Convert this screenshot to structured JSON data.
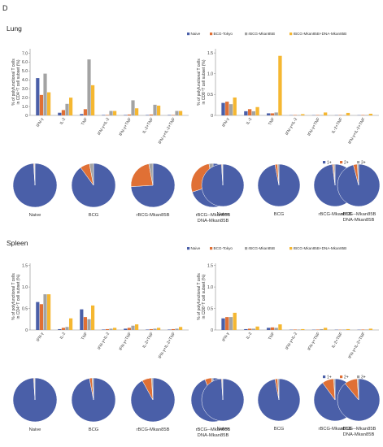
{
  "panel_letter": "D",
  "colors": {
    "naive": "#4a5fa8",
    "bcg": "#e07035",
    "rbcg": "#a3a3a3",
    "combo": "#f5b731"
  },
  "pie_colors": {
    "1+": "#4a5fa8",
    "2+": "#e07035",
    "3+": "#a3a3a3"
  },
  "sections": [
    {
      "title": "Lung",
      "legend": [
        "Naive",
        "BCG-Tokyo",
        "rBCG-Mkan85B",
        "rBCG-Mkan85B+DNA-Mkan85B"
      ],
      "pie_legend": [
        "1+",
        "2+",
        "3+"
      ],
      "pie_group_labels": [
        "Naive",
        "BCG",
        "rBCG-Mkan85B",
        "rBCG--Mkan85B",
        "DNA-Mkan85B"
      ],
      "cd4": {
        "ylabel_lines": [
          "% of polyfunctional T cells",
          "in CD4⁺T cell subset (%)"
        ],
        "chart_data": {
          "type": "bar",
          "categories": [
            "IFN-γ",
            "IL-2",
            "TNF",
            "IFN-γ+IL-2",
            "IFN-γ+TNF",
            "IL-2+TNF",
            "IFN-γ+IL-2+TNF"
          ],
          "series": [
            {
              "name": "Naive",
              "values": [
                4.2,
                0.3,
                0.15,
                0.05,
                0.05,
                0.05,
                0.05
              ]
            },
            {
              "name": "BCG-Tokyo",
              "values": [
                2.3,
                0.6,
                0.7,
                0.05,
                0.1,
                0.1,
                0.05
              ]
            },
            {
              "name": "rBCG-Mkan85B",
              "values": [
                4.7,
                1.3,
                6.3,
                0.5,
                1.7,
                1.2,
                0.5
              ]
            },
            {
              "name": "rBCG-Mkan85B+DNA-Mkan85B",
              "values": [
                2.6,
                2.0,
                3.4,
                0.5,
                0.8,
                1.1,
                0.5
              ]
            }
          ],
          "yticks": [
            "0",
            "1.0",
            "2.0",
            "3.0",
            "4.0",
            "5.0",
            "6.0",
            "7.0"
          ],
          "ylim": [
            0,
            7.5
          ]
        }
      },
      "cd8": {
        "ylabel_lines": [
          "% of polyfunctional T cells",
          "in CD8⁺T cell subset (%)"
        ],
        "chart_data": {
          "type": "bar",
          "categories": [
            "IFN-γ",
            "IL-2",
            "TNF",
            "IFN-γ+IL-2",
            "IFN-γ+TNF",
            "IL-2+TNF",
            "IFN-γ+IL-2+TNF"
          ],
          "series": [
            {
              "name": "Naive",
              "values": [
                0.3,
                0.1,
                0.05,
                0.0,
                0.0,
                0.0,
                0.0
              ]
            },
            {
              "name": "BCG-Tokyo",
              "values": [
                0.33,
                0.15,
                0.05,
                0.01,
                0.01,
                0.01,
                0.01
              ]
            },
            {
              "name": "rBCG-Mkan85B",
              "values": [
                0.27,
                0.1,
                0.07,
                0.01,
                0.01,
                0.01,
                0.01
              ]
            },
            {
              "name": "rBCG-Mkan85B+DNA-Mkan85B",
              "values": [
                0.43,
                0.2,
                1.43,
                0.03,
                0.07,
                0.06,
                0.04
              ]
            }
          ],
          "yticks": [
            "0",
            "0.5",
            "1.0",
            "1.5"
          ],
          "ylim": [
            0,
            1.6
          ]
        }
      },
      "pies_cd4": [
        {
          "label": "Naive",
          "values": [
            0.99,
            0.005,
            0.005
          ]
        },
        {
          "label": "BCG",
          "values": [
            0.9,
            0.07,
            0.03
          ]
        },
        {
          "label": "rBCG-Mkan85B",
          "values": [
            0.74,
            0.23,
            0.03
          ]
        },
        {
          "label": "rBCG--Mkan85B DNA-Mkan85B",
          "values": [
            0.7,
            0.27,
            0.03
          ]
        }
      ],
      "pies_cd8": [
        {
          "label": "Naive",
          "values": [
            0.99,
            0.005,
            0.005
          ]
        },
        {
          "label": "BCG",
          "values": [
            0.97,
            0.02,
            0.01
          ]
        },
        {
          "label": "rBCG-Mkan85B",
          "values": [
            0.98,
            0.01,
            0.01
          ]
        },
        {
          "label": "rBCG--Mkan85B DNA-Mkan85B",
          "values": [
            0.96,
            0.03,
            0.01
          ]
        }
      ]
    },
    {
      "title": "Spleen",
      "legend": [
        "Naive",
        "BCG-Tokyo",
        "rBCG-Mkan85B",
        "rBCG-Mkan85B+DNA-Mkan85B"
      ],
      "pie_legend": [
        "1+",
        "2+",
        "3+"
      ],
      "pie_group_labels": [
        "Naive",
        "BCG",
        "rBCG-Mkan85B",
        "rBCG--Mkan85B",
        "DNA-Mkan85B"
      ],
      "cd4": {
        "ylabel_lines": [
          "% of polyfunctional T cells",
          "in CD4⁺T cell subset (%)"
        ],
        "chart_data": {
          "type": "bar",
          "categories": [
            "IFN-γ",
            "IL-2",
            "TNF",
            "IFN-γ+IL-2",
            "IFN-γ+TNF",
            "IL-2+TNF",
            "IFN-γ+IL-2+TNF"
          ],
          "series": [
            {
              "name": "Naive",
              "values": [
                0.65,
                0.02,
                0.48,
                0.01,
                0.03,
                0.01,
                0.01
              ]
            },
            {
              "name": "BCG-Tokyo",
              "values": [
                0.6,
                0.05,
                0.3,
                0.02,
                0.05,
                0.02,
                0.02
              ]
            },
            {
              "name": "rBCG-Mkan85B",
              "values": [
                0.83,
                0.07,
                0.25,
                0.03,
                0.1,
                0.03,
                0.03
              ]
            },
            {
              "name": "rBCG-Mkan85B+DNA-Mkan85B",
              "values": [
                0.83,
                0.27,
                0.57,
                0.05,
                0.13,
                0.05,
                0.07
              ]
            }
          ],
          "yticks": [
            "0",
            "0.5",
            "1.0",
            "1.5"
          ],
          "ylim": [
            0,
            1.55
          ]
        }
      },
      "cd8": {
        "ylabel_lines": [
          "% of polyfunctional T cells",
          "in CD8⁺T cell subset (%)"
        ],
        "chart_data": {
          "type": "bar",
          "categories": [
            "IFN-γ",
            "IL-2",
            "TNF",
            "IFN-γ+IL-2",
            "IFN-γ+TNF",
            "IL-2+TNF",
            "IFN-γ+IL-2+TNF"
          ],
          "series": [
            {
              "name": "Naive",
              "values": [
                0.27,
                0.02,
                0.05,
                0.0,
                0.0,
                0.0,
                0.0
              ]
            },
            {
              "name": "BCG-Tokyo",
              "values": [
                0.3,
                0.03,
                0.06,
                0.01,
                0.01,
                0.0,
                0.01
              ]
            },
            {
              "name": "rBCG-Mkan85B",
              "values": [
                0.3,
                0.03,
                0.05,
                0.01,
                0.02,
                0.01,
                0.01
              ]
            },
            {
              "name": "rBCG-Mkan85B+DNA-Mkan85B",
              "values": [
                0.4,
                0.08,
                0.13,
                0.02,
                0.05,
                0.02,
                0.03
              ]
            }
          ],
          "yticks": [
            "0",
            "0.5",
            "1.0",
            "1.5"
          ],
          "ylim": [
            0,
            1.55
          ]
        }
      },
      "pies_cd4": [
        {
          "label": "Naive",
          "values": [
            0.99,
            0.005,
            0.005
          ]
        },
        {
          "label": "BCG",
          "values": [
            0.97,
            0.02,
            0.01
          ]
        },
        {
          "label": "rBCG-Mkan85B",
          "values": [
            0.92,
            0.07,
            0.01
          ]
        },
        {
          "label": "rBCG--Mkan85B DNA-Mkan85B",
          "values": [
            0.94,
            0.05,
            0.01
          ]
        }
      ],
      "pies_cd8": [
        {
          "label": "Naive",
          "values": [
            0.99,
            0.005,
            0.005
          ]
        },
        {
          "label": "BCG",
          "values": [
            0.97,
            0.02,
            0.01
          ]
        },
        {
          "label": "rBCG-Mkan85B",
          "values": [
            0.9,
            0.09,
            0.01
          ]
        },
        {
          "label": "rBCG--Mkan85B DNA-Mkan85B",
          "values": [
            0.89,
            0.1,
            0.01
          ]
        }
      ]
    }
  ]
}
